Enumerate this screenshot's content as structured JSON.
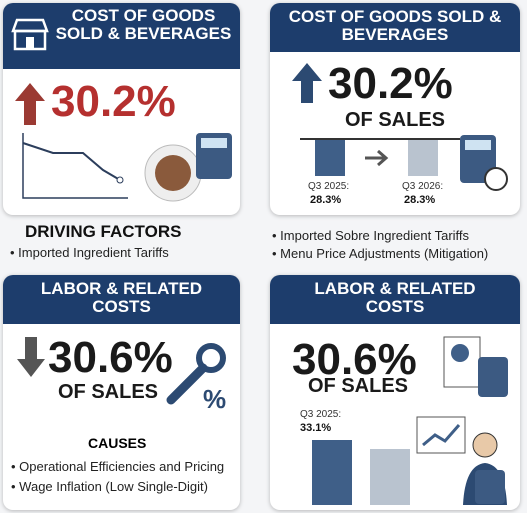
{
  "cards": [
    {
      "title": "COST OF GOODS SOLD & BEVERAGES",
      "value": "30.2%",
      "section_title": "DRIVING FACTORS",
      "bullets": [
        "Imported Ingredient Tariffs"
      ]
    },
    {
      "title": "COST OF GOODS SOLD & BEVERAGES",
      "value": "30.2%",
      "subtitle": "OF SALES",
      "bars": [
        {
          "label": "Q3 2025:",
          "value": "28.3%"
        },
        {
          "label": "Q3 2026:",
          "value": "28.3%"
        }
      ],
      "bullets": [
        "Imported Sobre Ingredient Tariffs",
        "Menu Price Adjustments (Mitigation)"
      ]
    },
    {
      "title": "LABOR & RELATED COSTS",
      "value": "30.6%",
      "subtitle": "OF SALES",
      "section_title": "CAUSES",
      "bullets": [
        "Operational Efficiencies and Pricing",
        "Wage Inflation (Low Single-Digit)"
      ]
    },
    {
      "title": "LABOR & RELATED COSTS",
      "value": "30.6%",
      "subtitle": "OF SALES",
      "bars": [
        {
          "label": "Q3 2025:",
          "value": "33.1%"
        }
      ]
    }
  ]
}
